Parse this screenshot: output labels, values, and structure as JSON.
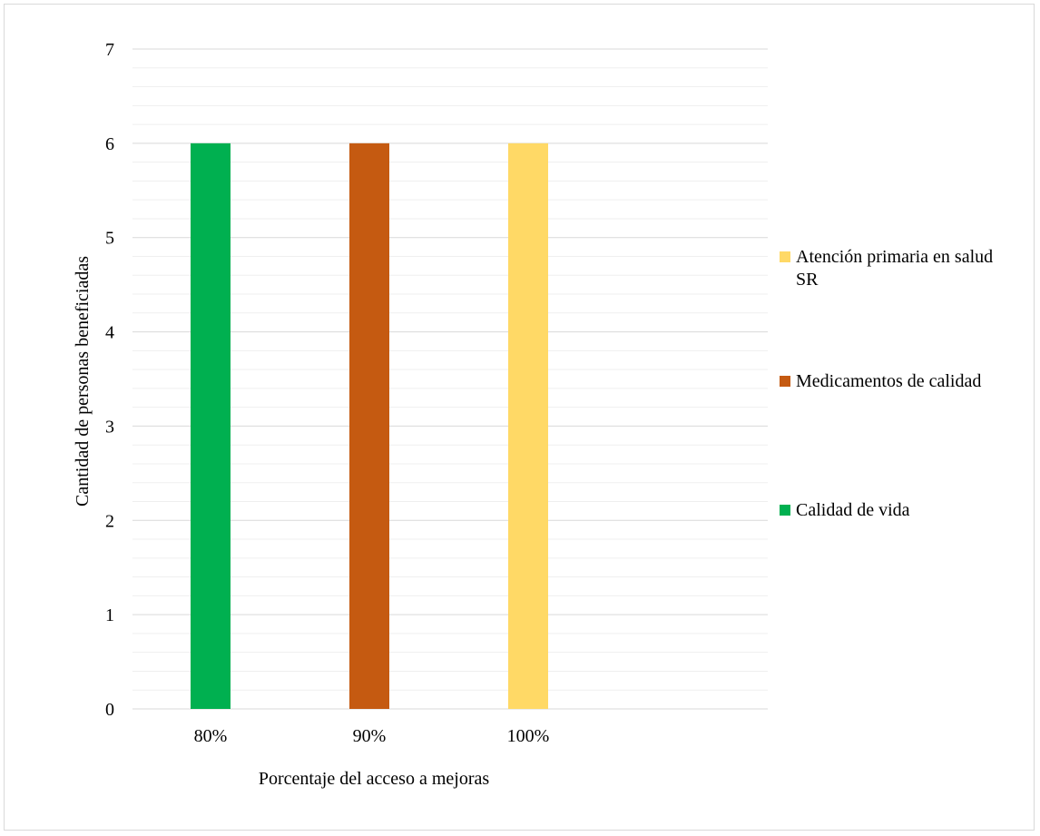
{
  "chart_data": {
    "type": "bar",
    "categories": [
      "80%",
      "90%",
      "100%"
    ],
    "series": [
      {
        "name": "Calidad de vida",
        "color": "#00b050",
        "values": [
          6,
          null,
          null
        ]
      },
      {
        "name": "Medicamentos de calidad",
        "color": "#c55a11",
        "values": [
          null,
          6,
          null
        ]
      },
      {
        "name": "Atención primaria en salud SR",
        "color": "#ffd966",
        "values": [
          null,
          null,
          6
        ]
      }
    ],
    "title": "",
    "xlabel": "Porcentaje del acceso a mejoras",
    "ylabel": "Cantidad de personas beneficiadas",
    "ylim": [
      0,
      7
    ],
    "yticks": [
      "0",
      "1",
      "2",
      "3",
      "4",
      "5",
      "6",
      "7"
    ],
    "grid": true,
    "legend_position": "right",
    "legend_order": [
      "Atención primaria en salud SR",
      "Medicamentos de calidad",
      "Calidad de vida"
    ],
    "legend_lines": {
      "Atención primaria en salud SR": [
        "Atención primaria en salud",
        "SR"
      ],
      "Medicamentos de calidad": [
        "Medicamentos de calidad"
      ],
      "Calidad de vida": [
        "Calidad de vida"
      ]
    }
  }
}
